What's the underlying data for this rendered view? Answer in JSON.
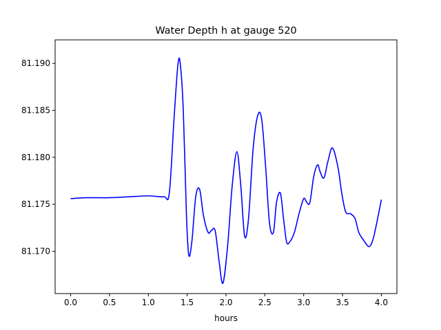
{
  "chart_data": {
    "type": "line",
    "title": "Water Depth h at gauge 520",
    "xlabel": "hours",
    "ylabel": "",
    "xlim": [
      -0.2,
      4.2
    ],
    "ylim": [
      81.1655,
      81.1925
    ],
    "xticks": [
      {
        "value": 0.0,
        "label": "0.0"
      },
      {
        "value": 0.5,
        "label": "0.5"
      },
      {
        "value": 1.0,
        "label": "1.0"
      },
      {
        "value": 1.5,
        "label": "1.5"
      },
      {
        "value": 2.0,
        "label": "2.0"
      },
      {
        "value": 2.5,
        "label": "2.5"
      },
      {
        "value": 3.0,
        "label": "3.0"
      },
      {
        "value": 3.5,
        "label": "3.5"
      },
      {
        "value": 4.0,
        "label": "4.0"
      }
    ],
    "yticks": [
      {
        "value": 81.17,
        "label": "81.170"
      },
      {
        "value": 81.175,
        "label": "81.175"
      },
      {
        "value": 81.18,
        "label": "81.180"
      },
      {
        "value": 81.185,
        "label": "81.185"
      },
      {
        "value": 81.19,
        "label": "81.190"
      }
    ],
    "grid": false,
    "series": [
      {
        "color": "#0000ff",
        "x": [
          0.0,
          0.2,
          0.5,
          0.75,
          1.0,
          1.2,
          1.27,
          1.33,
          1.38,
          1.41,
          1.45,
          1.49,
          1.52,
          1.56,
          1.61,
          1.66,
          1.71,
          1.77,
          1.81,
          1.86,
          1.91,
          1.96,
          2.02,
          2.08,
          2.14,
          2.19,
          2.24,
          2.29,
          2.35,
          2.41,
          2.46,
          2.51,
          2.56,
          2.61,
          2.65,
          2.7,
          2.74,
          2.78,
          2.82,
          2.88,
          2.94,
          3.0,
          3.04,
          3.08,
          3.13,
          3.18,
          3.21,
          3.26,
          3.31,
          3.37,
          3.44,
          3.49,
          3.54,
          3.6,
          3.66,
          3.71,
          3.77,
          3.84,
          3.89,
          3.94,
          4.0
        ],
        "y": [
          81.1756,
          81.1757,
          81.1757,
          81.1758,
          81.1759,
          81.1758,
          81.1762,
          81.184,
          81.1898,
          81.19,
          81.185,
          81.174,
          81.1696,
          81.171,
          81.1758,
          81.1766,
          81.1738,
          81.172,
          81.1722,
          81.1722,
          81.169,
          81.1666,
          81.1705,
          81.177,
          81.1806,
          81.177,
          81.1716,
          81.1735,
          81.181,
          81.1845,
          81.184,
          81.179,
          81.173,
          81.172,
          81.1752,
          81.1762,
          81.1735,
          81.171,
          81.171,
          81.172,
          81.174,
          81.1756,
          81.1752,
          81.1752,
          81.178,
          81.1792,
          81.1785,
          81.1778,
          81.1795,
          81.181,
          81.179,
          81.1762,
          81.1742,
          81.174,
          81.1735,
          81.172,
          81.1712,
          81.1705,
          81.1712,
          81.173,
          81.1755
        ]
      }
    ]
  }
}
